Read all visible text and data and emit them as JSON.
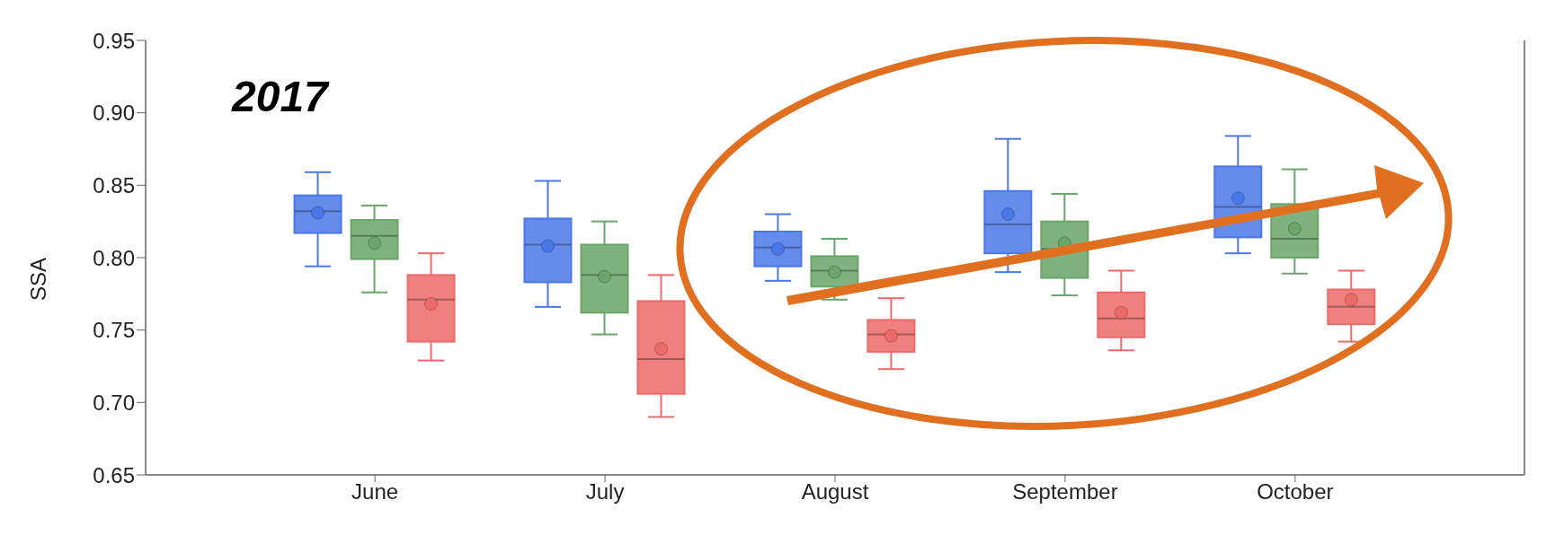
{
  "chart_data": {
    "type": "box",
    "ylabel": "SSA",
    "annotations": [
      "2017"
    ],
    "categories": [
      "June",
      "July",
      "August",
      "September",
      "October"
    ],
    "ylim": [
      0.65,
      0.95
    ],
    "yticks": [
      0.65,
      {
        "value": 0.7,
        "label": "0.70"
      },
      0.75,
      {
        "value": 0.8,
        "label": "0.80"
      },
      0.85,
      {
        "value": 0.9,
        "label": "0.90"
      },
      0.95
    ],
    "series": [
      {
        "color": "#4a78e8",
        "boxes": [
          {
            "low": 0.794,
            "q1": 0.817,
            "median": 0.832,
            "q3": 0.843,
            "high": 0.859,
            "mean": 0.831
          },
          {
            "low": 0.766,
            "q1": 0.783,
            "median": 0.809,
            "q3": 0.827,
            "high": 0.853,
            "mean": 0.808
          },
          {
            "low": 0.784,
            "q1": 0.794,
            "median": 0.807,
            "q3": 0.818,
            "high": 0.83,
            "mean": 0.806
          },
          {
            "low": 0.79,
            "q1": 0.803,
            "median": 0.823,
            "q3": 0.846,
            "high": 0.882,
            "mean": 0.83
          },
          {
            "low": 0.803,
            "q1": 0.814,
            "median": 0.835,
            "q3": 0.863,
            "high": 0.884,
            "mean": 0.841
          }
        ]
      },
      {
        "color": "#6aa56a",
        "boxes": [
          {
            "low": 0.776,
            "q1": 0.799,
            "median": 0.815,
            "q3": 0.826,
            "high": 0.836,
            "mean": 0.81
          },
          {
            "low": 0.747,
            "q1": 0.762,
            "median": 0.788,
            "q3": 0.809,
            "high": 0.825,
            "mean": 0.787
          },
          {
            "low": 0.771,
            "q1": 0.78,
            "median": 0.791,
            "q3": 0.801,
            "high": 0.813,
            "mean": 0.79
          },
          {
            "low": 0.774,
            "q1": 0.786,
            "median": 0.806,
            "q3": 0.825,
            "high": 0.844,
            "mean": 0.81
          },
          {
            "low": 0.789,
            "q1": 0.8,
            "median": 0.813,
            "q3": 0.837,
            "high": 0.861,
            "mean": 0.82
          }
        ]
      },
      {
        "color": "#ec6a6a",
        "boxes": [
          {
            "low": 0.729,
            "q1": 0.742,
            "median": 0.771,
            "q3": 0.788,
            "high": 0.803,
            "mean": 0.768
          },
          {
            "low": 0.69,
            "q1": 0.706,
            "median": 0.73,
            "q3": 0.77,
            "high": 0.788,
            "mean": 0.737
          },
          {
            "low": 0.723,
            "q1": 0.735,
            "median": 0.747,
            "q3": 0.757,
            "high": 0.772,
            "mean": 0.746
          },
          {
            "low": 0.736,
            "q1": 0.745,
            "median": 0.758,
            "q3": 0.776,
            "high": 0.791,
            "mean": 0.762
          },
          {
            "low": 0.742,
            "q1": 0.754,
            "median": 0.766,
            "q3": 0.778,
            "high": 0.791,
            "mean": 0.771
          }
        ]
      }
    ]
  }
}
